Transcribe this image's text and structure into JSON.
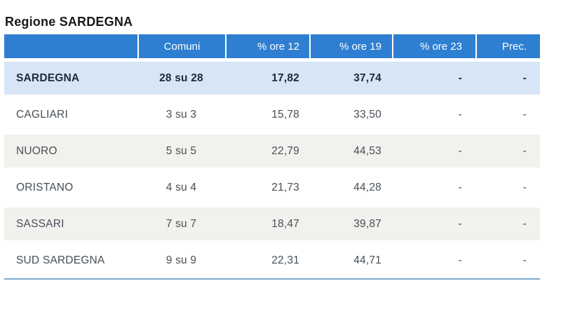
{
  "title": "Regione SARDEGNA",
  "table": {
    "columns": [
      "",
      "Comuni",
      "% ore 12",
      "% ore 19",
      "% ore 23",
      "Prec."
    ],
    "rows": [
      {
        "name": "SARDEGNA",
        "comuni": "28 su 28",
        "ore12": "17,82",
        "ore19": "37,74",
        "ore23": "-",
        "prec": "-"
      },
      {
        "name": "CAGLIARI",
        "comuni": "3 su 3",
        "ore12": "15,78",
        "ore19": "33,50",
        "ore23": "-",
        "prec": "-"
      },
      {
        "name": "NUORO",
        "comuni": "5 su 5",
        "ore12": "22,79",
        "ore19": "44,53",
        "ore23": "-",
        "prec": "-"
      },
      {
        "name": "ORISTANO",
        "comuni": "4 su 4",
        "ore12": "21,73",
        "ore19": "44,28",
        "ore23": "-",
        "prec": "-"
      },
      {
        "name": "SASSARI",
        "comuni": "7 su 7",
        "ore12": "18,47",
        "ore19": "39,87",
        "ore23": "-",
        "prec": "-"
      },
      {
        "name": "SUD SARDEGNA",
        "comuni": "9 su 9",
        "ore12": "22,31",
        "ore19": "44,71",
        "ore23": "-",
        "prec": "-"
      }
    ]
  },
  "chart_data": {
    "type": "table",
    "title": "Regione SARDEGNA",
    "columns": [
      "",
      "Comuni",
      "% ore 12",
      "% ore 19",
      "% ore 23",
      "Prec."
    ],
    "rows": [
      [
        "SARDEGNA",
        "28 su 28",
        "17,82",
        "37,74",
        "-",
        "-"
      ],
      [
        "CAGLIARI",
        "3 su 3",
        "15,78",
        "33,50",
        "-",
        "-"
      ],
      [
        "NUORO",
        "5 su 5",
        "22,79",
        "44,53",
        "-",
        "-"
      ],
      [
        "ORISTANO",
        "4 su 4",
        "21,73",
        "44,28",
        "-",
        "-"
      ],
      [
        "SASSARI",
        "7 su 7",
        "18,47",
        "39,87",
        "-",
        "-"
      ],
      [
        "SUD SARDEGNA",
        "9 su 9",
        "22,31",
        "44,71",
        "-",
        "-"
      ]
    ]
  },
  "colors": {
    "header_bg": "#2e7fd1",
    "header_text": "#ffffff",
    "highlight_row_bg": "#d7e5f7",
    "highlight_row_text": "#1c2b3c",
    "stripe_row_bg": "#f2f1ee",
    "row_text": "#474f56",
    "title_text": "#17191d",
    "bottom_border": "#7ba7cb"
  }
}
